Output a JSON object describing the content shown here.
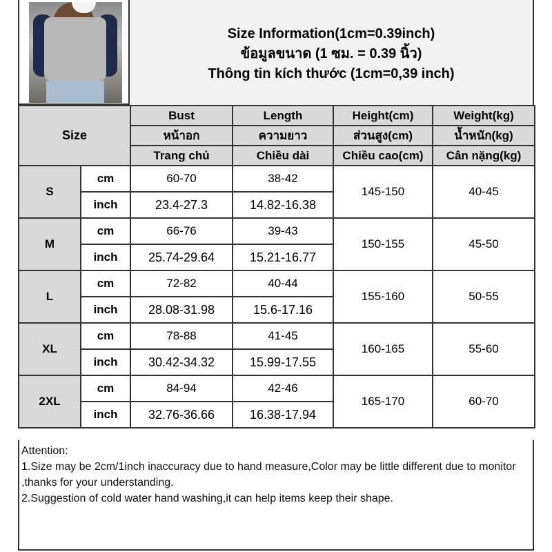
{
  "photo": {
    "alt": "model wearing grey cropped polo top with navy sleeves"
  },
  "title": {
    "line1": "Size Information(1cm=0.39inch)",
    "line2": "ข้อมูลขนาด (1 ซม. = 0.39 นิ้ว)",
    "line3": "Thông tin kích thước (1cm=0,39 inch)"
  },
  "header": {
    "size": "Size",
    "columns": [
      [
        "Bust",
        "หน้าอก",
        "Trang chủ"
      ],
      [
        "Length",
        "ความยาว",
        "Chiều dài"
      ],
      [
        "Height(cm)",
        "ส่วนสูง(cm)",
        "Chiều cao(cm)"
      ],
      [
        "Weight(kg)",
        "น้ำหนัก(kg)",
        "Cân nặng(kg)"
      ]
    ]
  },
  "rows": [
    {
      "size": "S",
      "cm_label": "cm",
      "inch_label": "inch",
      "bust_cm": "60-70",
      "length_cm": "38-42",
      "bust_inch": "23.4-27.3",
      "length_inch": "14.82-16.38",
      "height": "145-150",
      "weight": "40-45"
    },
    {
      "size": "M",
      "cm_label": "cm",
      "inch_label": "inch",
      "bust_cm": "66-76",
      "length_cm": "39-43",
      "bust_inch": "25.74-29.64",
      "length_inch": "15.21-16.77",
      "height": "150-155",
      "weight": "45-50"
    },
    {
      "size": "L",
      "cm_label": "cm",
      "inch_label": "inch",
      "bust_cm": "72-82",
      "length_cm": "40-44",
      "bust_inch": "28.08-31.98",
      "length_inch": "15.6-17.16",
      "height": "155-160",
      "weight": "50-55"
    },
    {
      "size": "XL",
      "cm_label": "cm",
      "inch_label": "inch",
      "bust_cm": "78-88",
      "length_cm": "41-45",
      "bust_inch": "30.42-34.32",
      "length_inch": "15.99-17.55",
      "height": "160-165",
      "weight": "55-60"
    },
    {
      "size": "2XL",
      "cm_label": "cm",
      "inch_label": "inch",
      "bust_cm": "84-94",
      "length_cm": "42-46",
      "bust_inch": "32.76-36.66",
      "length_inch": "16.38-17.94",
      "height": "165-170",
      "weight": "60-70"
    }
  ],
  "attention": {
    "title": "Attention:",
    "note1": "1.Size may be 2cm/1inch inaccuracy due to hand measure,Color may be little different due to monitor ,thanks for your understanding.",
    "note2": "2.Suggestion of cold water hand washing,it can help items keep their shape."
  }
}
